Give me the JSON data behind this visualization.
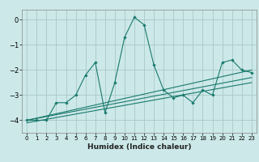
{
  "xlabel": "Humidex (Indice chaleur)",
  "ylabel": "",
  "xlim": [
    -0.5,
    23.5
  ],
  "ylim": [
    -4.5,
    0.4
  ],
  "yticks": [
    0,
    -1,
    -2,
    -3,
    -4
  ],
  "xticks": [
    0,
    1,
    2,
    3,
    4,
    5,
    6,
    7,
    8,
    9,
    10,
    11,
    12,
    13,
    14,
    15,
    16,
    17,
    18,
    19,
    20,
    21,
    22,
    23
  ],
  "bg_color": "#cce8e8",
  "line_color": "#1a7a6e",
  "grid_color": "#aac8c8",
  "series1_x": [
    0,
    1,
    2,
    3,
    4,
    5,
    6,
    7,
    8,
    9,
    10,
    11,
    12,
    13,
    14,
    15,
    16,
    17,
    18,
    19,
    20,
    21,
    22,
    23
  ],
  "series1_y": [
    -4.0,
    -4.0,
    -4.0,
    -3.3,
    -3.3,
    -3.0,
    -2.2,
    -1.7,
    -3.7,
    -2.5,
    -0.7,
    0.1,
    -0.2,
    -1.8,
    -2.8,
    -3.1,
    -3.0,
    -3.3,
    -2.8,
    -3.0,
    -1.7,
    -1.6,
    -2.0,
    -2.1
  ],
  "series2_x": [
    0,
    23
  ],
  "series2_y": [
    -4.0,
    -2.0
  ],
  "series3_x": [
    0,
    23
  ],
  "series3_y": [
    -4.0,
    -2.3
  ],
  "series4_x": [
    0,
    23
  ],
  "series4_y": [
    -4.1,
    -2.5
  ]
}
